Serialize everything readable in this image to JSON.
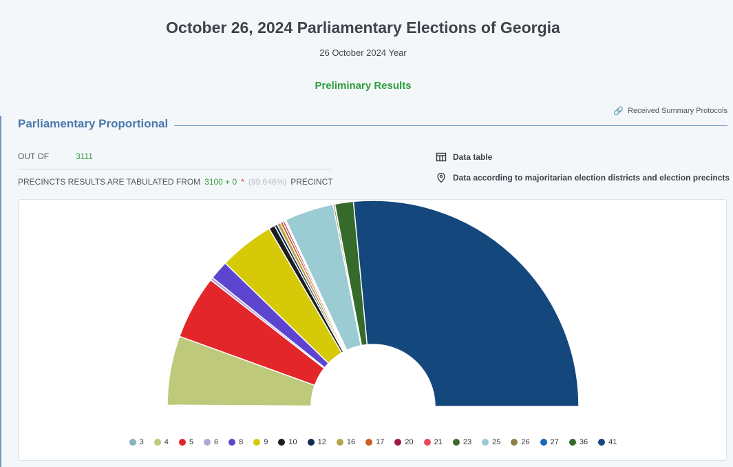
{
  "header": {
    "title": "October 26, 2024 Parliamentary Elections of Georgia",
    "subtitle": "26 October 2024 Year",
    "status": "Preliminary Results",
    "protocols_link": "Received Summary Protocols"
  },
  "section": {
    "title": "Parliamentary Proportional",
    "out_of_label": "OUT OF",
    "out_of_value": "3111",
    "tabulated_prefix": "PRECINCTS RESULTS ARE TABULATED FROM",
    "tabulated_value": "3100 + 0",
    "asterisk": "*",
    "percent": "(99.646%)",
    "tabulated_suffix": "PRECINCT"
  },
  "links": {
    "data_table": "Data table",
    "districts": "Data according to majoritarian election districts and election precincts"
  },
  "chart_data": {
    "type": "pie",
    "shape": "semicircle-donut",
    "legend_position": "bottom",
    "series": [
      {
        "name": "3",
        "value": 0.19,
        "color": "#86b3bd"
      },
      {
        "name": "4",
        "value": 11.04,
        "color": "#bec97c"
      },
      {
        "name": "5",
        "value": 10.17,
        "color": "#e3262a"
      },
      {
        "name": "6",
        "value": 0.46,
        "color": "#b6a4dc"
      },
      {
        "name": "8",
        "value": 3.04,
        "color": "#5d45cf"
      },
      {
        "name": "9",
        "value": 8.81,
        "color": "#d6c908"
      },
      {
        "name": "10",
        "value": 0.97,
        "color": "#1e1e1e"
      },
      {
        "name": "12",
        "value": 0.44,
        "color": "#0e2a56"
      },
      {
        "name": "16",
        "value": 0.57,
        "color": "#b5a44a"
      },
      {
        "name": "17",
        "value": 0.4,
        "color": "#cf5b27"
      },
      {
        "name": "20",
        "value": 0.29,
        "color": "#9e1848"
      },
      {
        "name": "21",
        "value": 0.19,
        "color": "#e8485a"
      },
      {
        "name": "23",
        "value": 0.1,
        "color": "#3b6c2c"
      },
      {
        "name": "25",
        "value": 7.81,
        "color": "#9bcbd3"
      },
      {
        "name": "26",
        "value": 0.28,
        "color": "#8c8048"
      },
      {
        "name": "27",
        "value": 0.03,
        "color": "#1668b8"
      },
      {
        "name": "36",
        "value": 2.96,
        "color": "#366a2b"
      },
      {
        "name": "41",
        "value": 53.93,
        "color": "#14477c"
      }
    ]
  }
}
